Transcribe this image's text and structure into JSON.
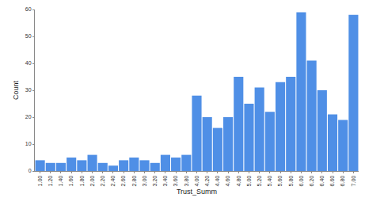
{
  "chart_data": {
    "type": "bar",
    "x_label": "Trust_Summ",
    "y_label": "Count",
    "categories": [
      "1.00",
      "1.20",
      "1.40",
      "1.60",
      "1.80",
      "2.00",
      "2.20",
      "2.40",
      "2.60",
      "2.80",
      "3.00",
      "3.20",
      "3.40",
      "3.60",
      "3.80",
      "4.00",
      "4.20",
      "4.40",
      "4.60",
      "4.80",
      "5.00",
      "5.20",
      "5.40",
      "5.60",
      "5.80",
      "6.00",
      "6.20",
      "6.40",
      "6.60",
      "6.80",
      "7.00"
    ],
    "values": [
      4,
      3,
      3,
      5,
      4,
      6,
      3,
      2,
      4,
      5,
      4,
      3,
      6,
      5,
      6,
      28,
      20,
      16,
      20,
      35,
      25,
      31,
      22,
      33,
      35,
      59,
      41,
      30,
      21,
      19,
      58
    ],
    "color": "#4f8fe6",
    "ylim": [
      0,
      60
    ],
    "yticks": [
      0,
      10,
      20,
      30,
      40,
      50,
      60
    ],
    "grid": false
  }
}
